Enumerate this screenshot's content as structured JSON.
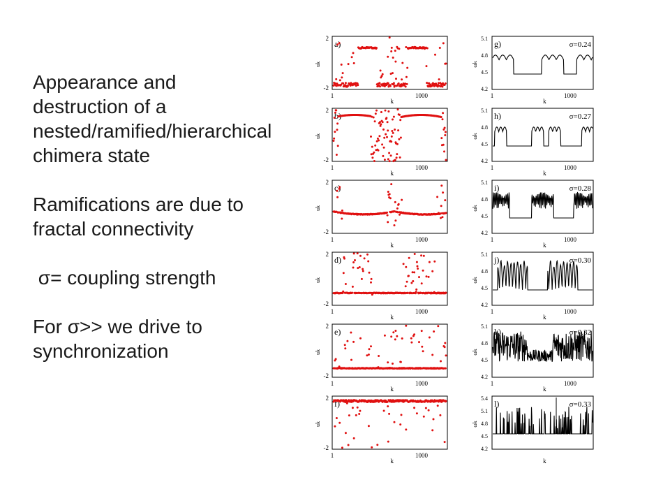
{
  "slide": {
    "paragraphs": [
      "Appearance and destruction of a nested/ramified/hierarchical chimera state",
      "Ramifications are due to fractal connectivity",
      " σ= coupling strength",
      "For σ>> we drive to synchronization"
    ]
  },
  "chart_data": [
    {
      "type": "scatter",
      "panel": "a)",
      "series_color": "#e01010",
      "x_tick_labels": [
        "1",
        "1000"
      ],
      "y_tick_labels": [
        "2",
        "-2"
      ],
      "ylabel": "uk",
      "xlabel": "k",
      "ylim": [
        -2,
        2
      ],
      "pattern": "two arched coherent domains with scattered incoherent points"
    },
    {
      "type": "scatter",
      "panel": "b)",
      "series_color": "#e01010",
      "x_tick_labels": [
        "1",
        "1000"
      ],
      "y_tick_labels": [
        "2",
        "-2"
      ],
      "ylabel": "uk",
      "xlabel": "k",
      "ylim": [
        -2,
        2
      ],
      "pattern": "wide arched coherent domains with dense incoherent regions"
    },
    {
      "type": "scatter",
      "panel": "c)",
      "series_color": "#e01010",
      "x_tick_labels": [
        "1",
        "1000"
      ],
      "y_tick_labels": [
        "2",
        "-2"
      ],
      "ylabel": "uk",
      "xlabel": "k",
      "ylim": [
        -2,
        2
      ],
      "pattern": "low arcs with incoherent clusters"
    },
    {
      "type": "scatter",
      "panel": "d)",
      "series_color": "#e01010",
      "x_tick_labels": [
        "1",
        "1000"
      ],
      "y_tick_labels": [
        "2",
        "-2"
      ],
      "ylabel": "uk",
      "xlabel": "k",
      "ylim": [
        -2,
        2
      ],
      "pattern": "flat coherent baseline with two incoherent clusters"
    },
    {
      "type": "scatter",
      "panel": "e)",
      "series_color": "#e01010",
      "x_tick_labels": [
        "1",
        "1000"
      ],
      "y_tick_labels": [
        "2",
        "-2"
      ],
      "ylabel": "uk",
      "xlabel": "k",
      "ylim": [
        -2,
        2
      ],
      "pattern": "flat coherent baseline with sparse scattered points"
    },
    {
      "type": "scatter",
      "panel": "f)",
      "series_color": "#e01010",
      "x_tick_labels": [
        "1",
        "1000"
      ],
      "y_tick_labels": [
        "2",
        "-2"
      ],
      "ylabel": "uk",
      "xlabel": "k",
      "ylim": [
        -2,
        2
      ],
      "pattern": "synchronized band near top with scattered points at bottom"
    },
    {
      "type": "line",
      "panel": "g)",
      "sigma_label": "σ=0.24",
      "x_tick_labels": [
        "1",
        "1000"
      ],
      "y_tick_labels": [
        "5.1",
        "4.8",
        "4.5",
        "4.2"
      ],
      "ylabel": "ωk",
      "xlabel": "k",
      "ylim": [
        4.2,
        5.1
      ]
    },
    {
      "type": "line",
      "panel": "h)",
      "sigma_label": "σ=0.27",
      "x_tick_labels": [
        "1",
        "1000"
      ],
      "y_tick_labels": [
        "5.1",
        "4.8",
        "4.5",
        "4.2"
      ],
      "ylabel": "ωk",
      "xlabel": "k",
      "ylim": [
        4.2,
        5.1
      ]
    },
    {
      "type": "line",
      "panel": "i)",
      "sigma_label": "σ=0.28",
      "x_tick_labels": [
        "1",
        "1000"
      ],
      "y_tick_labels": [
        "5.1",
        "4.8",
        "4.5",
        "4.2"
      ],
      "ylabel": "ωk",
      "xlabel": "k",
      "ylim": [
        4.2,
        5.1
      ]
    },
    {
      "type": "line",
      "panel": "j)",
      "sigma_label": "σ=0.30",
      "x_tick_labels": [
        "1",
        "1000"
      ],
      "y_tick_labels": [
        "5.1",
        "4.8",
        "4.5",
        "4.2"
      ],
      "ylabel": "ωk",
      "xlabel": "k",
      "ylim": [
        4.2,
        5.1
      ]
    },
    {
      "type": "line",
      "panel": "k)",
      "sigma_label": "σ=0.32",
      "x_tick_labels": [
        "1",
        "1000"
      ],
      "y_tick_labels": [
        "5.1",
        "4.8",
        "4.5",
        "4.2"
      ],
      "ylabel": "ωk",
      "xlabel": "k",
      "ylim": [
        4.2,
        5.1
      ]
    },
    {
      "type": "line",
      "panel": "l)",
      "sigma_label": "σ=0.33",
      "x_tick_labels": [],
      "y_tick_labels": [
        "5.4",
        "5.1",
        "4.8",
        "4.5",
        "4.2"
      ],
      "ylabel": "ωk",
      "xlabel": "k",
      "ylim": [
        4.2,
        5.4
      ]
    }
  ]
}
